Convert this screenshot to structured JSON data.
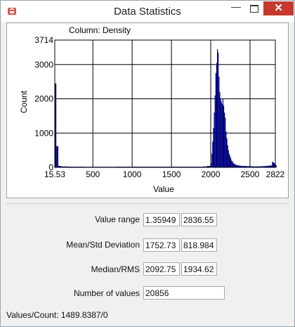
{
  "window": {
    "title": "Data Statistics",
    "min_glyph": "—",
    "close_glyph": "✕",
    "app_icon": "java-cup-icon",
    "accent_close": "#c7392f"
  },
  "chart_data": {
    "type": "bar",
    "title": "Column: Density",
    "xlabel": "Value",
    "ylabel": "Count",
    "xlim": [
      15.53,
      2822
    ],
    "ylim": [
      0,
      3714
    ],
    "x_ticks": [
      15.53,
      500,
      1000,
      1500,
      2000,
      2500,
      2822
    ],
    "x_tick_labels": [
      "15.53",
      "500",
      "1000",
      "1500",
      "2000",
      "2500",
      "2822"
    ],
    "y_ticks": [
      0,
      1000,
      2000,
      3000,
      3714
    ],
    "y_tick_labels": [
      "0",
      "1000",
      "2000",
      "3000",
      "3714"
    ],
    "grid": true,
    "bar_color": "#000080",
    "bins": [
      [
        15.53,
        2450
      ],
      [
        35,
        620
      ],
      [
        60,
        40
      ],
      [
        100,
        25
      ],
      [
        200,
        20
      ],
      [
        400,
        18
      ],
      [
        600,
        18
      ],
      [
        800,
        20
      ],
      [
        1000,
        20
      ],
      [
        1200,
        20
      ],
      [
        1400,
        20
      ],
      [
        1600,
        20
      ],
      [
        1800,
        20
      ],
      [
        1900,
        25
      ],
      [
        1950,
        40
      ],
      [
        2000,
        120
      ],
      [
        2010,
        400
      ],
      [
        2020,
        750
      ],
      [
        2030,
        1150
      ],
      [
        2040,
        1600
      ],
      [
        2050,
        2100
      ],
      [
        2060,
        2750
      ],
      [
        2070,
        3050
      ],
      [
        2080,
        3450
      ],
      [
        2090,
        3350
      ],
      [
        2100,
        2650
      ],
      [
        2110,
        2200
      ],
      [
        2120,
        2000
      ],
      [
        2130,
        1920
      ],
      [
        2140,
        1850
      ],
      [
        2150,
        2000
      ],
      [
        2160,
        1800
      ],
      [
        2170,
        1600
      ],
      [
        2180,
        1450
      ],
      [
        2190,
        1050
      ],
      [
        2200,
        850
      ],
      [
        2210,
        650
      ],
      [
        2220,
        500
      ],
      [
        2230,
        400
      ],
      [
        2240,
        330
      ],
      [
        2250,
        270
      ],
      [
        2260,
        200
      ],
      [
        2270,
        180
      ],
      [
        2280,
        140
      ],
      [
        2290,
        110
      ],
      [
        2300,
        90
      ],
      [
        2320,
        70
      ],
      [
        2340,
        60
      ],
      [
        2360,
        50
      ],
      [
        2380,
        45
      ],
      [
        2400,
        40
      ],
      [
        2450,
        35
      ],
      [
        2500,
        30
      ],
      [
        2550,
        28
      ],
      [
        2600,
        30
      ],
      [
        2650,
        35
      ],
      [
        2700,
        45
      ],
      [
        2750,
        55
      ],
      [
        2780,
        160
      ],
      [
        2800,
        120
      ],
      [
        2822,
        60
      ]
    ]
  },
  "stats": {
    "range_label": "Value range",
    "range_min": "1.35949",
    "range_max": "2836.55",
    "mean_label": "Mean/Std Deviation",
    "mean": "1752.73",
    "std": "818.984",
    "median_label": "Median/RMS",
    "median": "2092.75",
    "rms": "1934.62",
    "count_label": "Number of values",
    "count": "20856"
  },
  "status_text": "Values/Count: 1489.8387/0"
}
